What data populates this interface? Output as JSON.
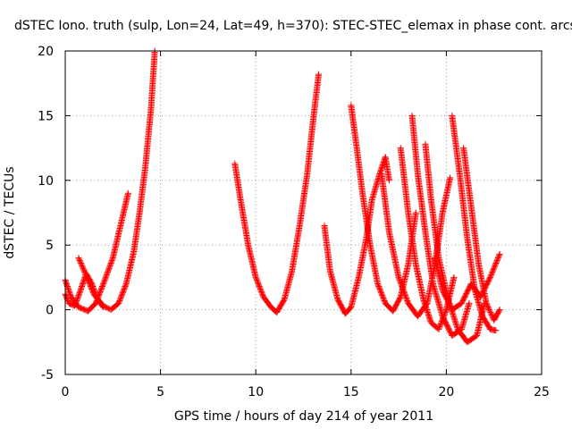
{
  "chart_data": {
    "type": "scatter",
    "title": "dSTEC Iono. truth (sulp, Lon=24, Lat=49, h=370): STEC-STEC_elemax in phase cont. arcs",
    "xlabel": "GPS time / hours of day 214 of year 2011",
    "ylabel": "dSTEC  / TECUs",
    "xlim": [
      0,
      25
    ],
    "ylim": [
      -5,
      20
    ],
    "xticks": [
      0,
      5,
      10,
      15,
      20,
      25
    ],
    "yticks": [
      -5,
      0,
      5,
      10,
      15,
      20
    ],
    "grid": true,
    "marker": "+",
    "color": "#ff0000",
    "series": [
      {
        "x": [
          0.0,
          0.2,
          0.5,
          0.8,
          1.1,
          1.4,
          1.7,
          2.0
        ],
        "y": [
          1.2,
          0.5,
          0.3,
          1.5,
          2.8,
          2.0,
          0.8,
          0.2
        ]
      },
      {
        "x": [
          0.0,
          0.3,
          0.7,
          1.2,
          1.6,
          2.0,
          2.5,
          2.9,
          3.3
        ],
        "y": [
          2.3,
          1.0,
          0.2,
          -0.1,
          0.5,
          2.0,
          4.0,
          6.5,
          9.0
        ]
      },
      {
        "x": [
          0.7,
          1.0,
          1.5,
          2.0,
          2.4,
          2.8,
          3.2,
          3.6,
          3.9,
          4.2,
          4.5,
          4.7
        ],
        "y": [
          4.0,
          3.0,
          1.2,
          0.3,
          0.0,
          0.5,
          2.0,
          4.5,
          7.5,
          11.0,
          15.5,
          20.0
        ]
      },
      {
        "x": [
          8.9,
          9.2,
          9.6,
          10.0,
          10.4,
          10.8,
          11.1,
          11.5,
          11.9,
          12.3,
          12.7,
          13.0,
          13.3
        ],
        "y": [
          11.3,
          8.5,
          5.0,
          2.5,
          1.0,
          0.2,
          -0.2,
          0.8,
          3.0,
          6.5,
          10.5,
          14.5,
          18.2
        ]
      },
      {
        "x": [
          13.6,
          13.9,
          14.3,
          14.7,
          15.0,
          15.4,
          15.8,
          16.1,
          16.5,
          16.8,
          17.0
        ],
        "y": [
          6.5,
          3.0,
          0.8,
          -0.3,
          0.2,
          2.5,
          5.5,
          8.5,
          10.5,
          11.8,
          10.0
        ]
      },
      {
        "x": [
          15.0,
          15.3,
          15.6,
          16.0,
          16.4,
          16.8,
          17.2,
          17.6,
          18.0,
          18.4
        ],
        "y": [
          15.8,
          12.5,
          9.0,
          5.0,
          2.0,
          0.5,
          -0.1,
          1.0,
          3.5,
          7.5
        ]
      },
      {
        "x": [
          16.6,
          17.0,
          17.5,
          18.0,
          18.5,
          19.0,
          19.4,
          19.8,
          20.2
        ],
        "y": [
          10.5,
          6.0,
          2.5,
          0.5,
          -0.5,
          0.5,
          3.5,
          7.5,
          10.2
        ]
      },
      {
        "x": [
          17.6,
          18.0,
          18.4,
          18.8,
          19.2,
          19.6,
          20.0,
          20.4
        ],
        "y": [
          12.5,
          7.5,
          3.5,
          0.8,
          -1.0,
          -1.5,
          0.0,
          2.5
        ]
      },
      {
        "x": [
          18.2,
          18.5,
          18.9,
          19.3,
          19.8,
          20.3,
          20.8,
          21.2
        ],
        "y": [
          15.0,
          10.5,
          6.0,
          2.0,
          -0.5,
          -2.0,
          -1.5,
          0.5
        ]
      },
      {
        "x": [
          18.9,
          19.2,
          19.6,
          20.1,
          20.6,
          21.1,
          21.6,
          22.0
        ],
        "y": [
          12.8,
          8.5,
          4.0,
          0.8,
          -1.5,
          -2.5,
          -2.0,
          0.5
        ]
      },
      {
        "x": [
          20.3,
          20.7,
          21.1,
          21.5,
          21.9,
          22.3,
          22.6
        ],
        "y": [
          15.0,
          10.5,
          5.5,
          1.5,
          -0.5,
          -1.5,
          -1.6
        ]
      },
      {
        "x": [
          20.9,
          21.3,
          21.7,
          22.1,
          22.5,
          22.8
        ],
        "y": [
          12.5,
          8.0,
          3.5,
          0.5,
          -0.8,
          0.0
        ]
      },
      {
        "x": [
          19.4,
          19.8,
          20.3,
          20.8,
          21.3,
          21.8,
          22.3,
          22.8
        ],
        "y": [
          4.0,
          1.5,
          0.0,
          0.5,
          2.0,
          1.0,
          2.5,
          4.3
        ]
      }
    ]
  }
}
